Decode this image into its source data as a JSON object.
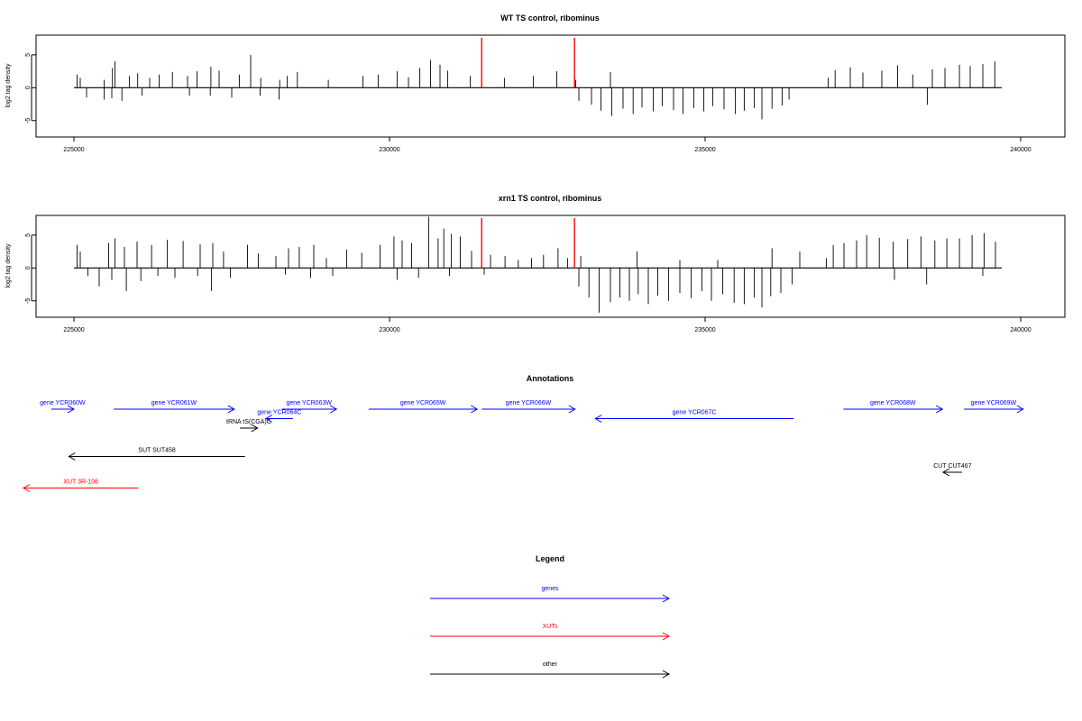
{
  "chart_data": [
    {
      "type": "bar",
      "title": "WT TS control, ribominus",
      "ylabel": "log2 tag density",
      "xlim": [
        224400,
        240700
      ],
      "ylim": [
        -7.5,
        8
      ],
      "xticks": [
        225000,
        230000,
        235000,
        240000
      ],
      "xtick_labels": [
        "225000",
        "230000",
        "235000",
        "240000"
      ],
      "yticks": [
        -5,
        0,
        5
      ],
      "ytick_labels": [
        "-5",
        "0",
        "5"
      ],
      "baseline": {
        "x_start": 225000,
        "x_end": 239700
      },
      "markers": {
        "color": "#ff0000",
        "x": [
          231460,
          232930
        ]
      },
      "series": [
        {
          "strand": "plus",
          "values": [
            [
              225050,
              2
            ],
            [
              225100,
              1.5
            ],
            [
              225480,
              1.2
            ],
            [
              225610,
              3
            ],
            [
              225650,
              4
            ],
            [
              225880,
              1.8
            ],
            [
              226010,
              2.2
            ],
            [
              226200,
              1.5
            ],
            [
              226350,
              2
            ],
            [
              226560,
              2.4
            ],
            [
              226800,
              1.8
            ],
            [
              226950,
              2.5
            ],
            [
              227170,
              3.2
            ],
            [
              227300,
              2.6
            ],
            [
              227620,
              2
            ],
            [
              227800,
              5
            ],
            [
              227960,
              1.5
            ],
            [
              228260,
              1.2
            ],
            [
              228380,
              1.8
            ],
            [
              228540,
              2.4
            ],
            [
              229030,
              1.2
            ],
            [
              229580,
              1.8
            ],
            [
              229820,
              2
            ],
            [
              230120,
              2.5
            ],
            [
              230300,
              1.6
            ],
            [
              230480,
              3
            ],
            [
              230650,
              4.2
            ],
            [
              230800,
              3.5
            ],
            [
              230920,
              2.6
            ],
            [
              231280,
              1.8
            ],
            [
              231820,
              1.5
            ],
            [
              232280,
              1.8
            ],
            [
              232650,
              2.5
            ],
            [
              232950,
              1.2
            ],
            [
              233500,
              2.4
            ],
            [
              236950,
              1.5
            ],
            [
              237060,
              2.7
            ],
            [
              237300,
              3.1
            ],
            [
              237500,
              2.3
            ],
            [
              237800,
              2.6
            ],
            [
              238050,
              3.4
            ],
            [
              238290,
              2
            ],
            [
              238600,
              2.8
            ],
            [
              238800,
              3
            ],
            [
              239030,
              3.5
            ],
            [
              239200,
              3.3
            ],
            [
              239400,
              3.6
            ],
            [
              239590,
              4
            ]
          ]
        },
        {
          "strand": "minus",
          "values": [
            [
              225200,
              -1.5
            ],
            [
              225480,
              -1.8
            ],
            [
              225600,
              -1.6
            ],
            [
              225760,
              -2
            ],
            [
              226080,
              -1.2
            ],
            [
              226830,
              -1.2
            ],
            [
              227160,
              -1.2
            ],
            [
              227500,
              -1.5
            ],
            [
              227950,
              -1.2
            ],
            [
              228250,
              -1.8
            ],
            [
              233000,
              -2
            ],
            [
              233200,
              -2.6
            ],
            [
              233350,
              -3.5
            ],
            [
              233520,
              -4.3
            ],
            [
              233700,
              -3.2
            ],
            [
              233860,
              -4
            ],
            [
              234000,
              -3
            ],
            [
              234180,
              -3.6
            ],
            [
              234320,
              -2.8
            ],
            [
              234500,
              -3.4
            ],
            [
              234650,
              -4
            ],
            [
              234820,
              -3.1
            ],
            [
              234980,
              -3.6
            ],
            [
              235120,
              -2.8
            ],
            [
              235300,
              -3.3
            ],
            [
              235480,
              -4
            ],
            [
              235620,
              -3.5
            ],
            [
              235780,
              -3.1
            ],
            [
              235900,
              -4.8
            ],
            [
              236060,
              -3.2
            ],
            [
              236220,
              -2.7
            ],
            [
              236330,
              -1.8
            ],
            [
              238520,
              -2.6
            ]
          ]
        }
      ]
    },
    {
      "type": "bar",
      "title": "xrn1 TS control, ribominus",
      "ylabel": "log2 tag density",
      "xlim": [
        224400,
        240700
      ],
      "ylim": [
        -7.5,
        8
      ],
      "xticks": [
        225000,
        230000,
        235000,
        240000
      ],
      "xtick_labels": [
        "225000",
        "230000",
        "235000",
        "240000"
      ],
      "yticks": [
        -5,
        0,
        5
      ],
      "ytick_labels": [
        "-5",
        "0",
        "5"
      ],
      "baseline": {
        "x_start": 225000,
        "x_end": 239700
      },
      "markers": {
        "color": "#ff0000",
        "x": [
          231460,
          232930
        ]
      },
      "series": [
        {
          "strand": "plus",
          "values": [
            [
              225050,
              3.5
            ],
            [
              225100,
              2.5
            ],
            [
              225550,
              3.8
            ],
            [
              225650,
              4.5
            ],
            [
              225800,
              3.2
            ],
            [
              226000,
              4
            ],
            [
              226230,
              3.5
            ],
            [
              226480,
              4.3
            ],
            [
              226730,
              4.1
            ],
            [
              227000,
              3.6
            ],
            [
              227200,
              3.8
            ],
            [
              227370,
              2.5
            ],
            [
              227750,
              3.5
            ],
            [
              227920,
              2.2
            ],
            [
              228200,
              1.8
            ],
            [
              228400,
              3
            ],
            [
              228570,
              3.2
            ],
            [
              228800,
              3.5
            ],
            [
              229000,
              1.5
            ],
            [
              229320,
              2.8
            ],
            [
              229560,
              2.3
            ],
            [
              229850,
              3.5
            ],
            [
              230070,
              4.8
            ],
            [
              230200,
              4.2
            ],
            [
              230350,
              3.8
            ],
            [
              230620,
              7.8
            ],
            [
              230770,
              4.5
            ],
            [
              230860,
              6
            ],
            [
              230980,
              5.2
            ],
            [
              231120,
              4.8
            ],
            [
              231300,
              2.6
            ],
            [
              231600,
              2
            ],
            [
              231830,
              1.8
            ],
            [
              232040,
              1.2
            ],
            [
              232250,
              1.5
            ],
            [
              232440,
              2
            ],
            [
              232670,
              3
            ],
            [
              232820,
              1.5
            ],
            [
              233030,
              1.8
            ],
            [
              233920,
              2.5
            ],
            [
              234600,
              1.2
            ],
            [
              235200,
              1.2
            ],
            [
              236060,
              3
            ],
            [
              236500,
              2.5
            ],
            [
              236920,
              1.5
            ],
            [
              237030,
              3.5
            ],
            [
              237200,
              3.8
            ],
            [
              237400,
              4.2
            ],
            [
              237560,
              5
            ],
            [
              237760,
              4.6
            ],
            [
              237980,
              4
            ],
            [
              238210,
              4.4
            ],
            [
              238420,
              4.8
            ],
            [
              238640,
              4.2
            ],
            [
              238830,
              4.5
            ],
            [
              239030,
              4.5
            ],
            [
              239230,
              5
            ],
            [
              239420,
              5.3
            ],
            [
              239600,
              4
            ]
          ]
        },
        {
          "strand": "minus",
          "values": [
            [
              225220,
              -1.2
            ],
            [
              225400,
              -2.8
            ],
            [
              225600,
              -1.8
            ],
            [
              225830,
              -3.5
            ],
            [
              226060,
              -2
            ],
            [
              226330,
              -1.2
            ],
            [
              226600,
              -1.5
            ],
            [
              226960,
              -1.2
            ],
            [
              227180,
              -3.5
            ],
            [
              227480,
              -1.5
            ],
            [
              228350,
              -1
            ],
            [
              228750,
              -1.5
            ],
            [
              229100,
              -1.2
            ],
            [
              230120,
              -1.8
            ],
            [
              230460,
              -1.5
            ],
            [
              230950,
              -1.2
            ],
            [
              231500,
              -1
            ],
            [
              233000,
              -2.8
            ],
            [
              233160,
              -4.5
            ],
            [
              233320,
              -6.8
            ],
            [
              233500,
              -5.2
            ],
            [
              233650,
              -4.5
            ],
            [
              233800,
              -5
            ],
            [
              233940,
              -4
            ],
            [
              234100,
              -5.5
            ],
            [
              234250,
              -4.2
            ],
            [
              234420,
              -5
            ],
            [
              234600,
              -3.8
            ],
            [
              234780,
              -4.6
            ],
            [
              234950,
              -3.5
            ],
            [
              235100,
              -5
            ],
            [
              235280,
              -4
            ],
            [
              235460,
              -5.3
            ],
            [
              235620,
              -5.5
            ],
            [
              235780,
              -4.5
            ],
            [
              235900,
              -6
            ],
            [
              236040,
              -4.3
            ],
            [
              236200,
              -3.8
            ],
            [
              236380,
              -2.5
            ],
            [
              238000,
              -1.8
            ],
            [
              238510,
              -2.5
            ],
            [
              239400,
              -1.2
            ]
          ]
        }
      ]
    }
  ],
  "annotations": {
    "title": "Annotations",
    "xlim": [
      224400,
      240700
    ],
    "items": [
      {
        "label": "gene YCR060W",
        "x1": 224640,
        "x2": 225000,
        "row": 0,
        "color": "#0000ff"
      },
      {
        "label": "gene YCR061W",
        "x1": 225630,
        "x2": 227540,
        "row": 0,
        "color": "#0000ff"
      },
      {
        "label": "gene YCR063W",
        "x1": 228290,
        "x2": 229160,
        "row": 0,
        "color": "#0000ff"
      },
      {
        "label": "gene YCR064C",
        "x1": 228470,
        "x2": 228040,
        "row": 0.6,
        "color": "#0000ff"
      },
      {
        "label": "tRNA tS(CGA)C",
        "x1": 227630,
        "x2": 227910,
        "row": 1.2,
        "color": "#000000"
      },
      {
        "label": "gene YCR065W",
        "x1": 229670,
        "x2": 231390,
        "row": 0,
        "color": "#0000ff"
      },
      {
        "label": "gene YCR066W",
        "x1": 231460,
        "x2": 232940,
        "row": 0,
        "color": "#0000ff"
      },
      {
        "label": "gene YCR067C",
        "x1": 236400,
        "x2": 233260,
        "row": 0.6,
        "color": "#0000ff"
      },
      {
        "label": "gene YCR068W",
        "x1": 237190,
        "x2": 238760,
        "row": 0,
        "color": "#0000ff"
      },
      {
        "label": "gene YCR069W",
        "x1": 239100,
        "x2": 240040,
        "row": 0,
        "color": "#0000ff"
      },
      {
        "label": "SUT SUT458",
        "x1": 227710,
        "x2": 224920,
        "row": 3,
        "color": "#000000"
      },
      {
        "label": "CUT CUT467",
        "x1": 239070,
        "x2": 238770,
        "row": 4,
        "color": "#000000"
      },
      {
        "label": "XUT 3R-106",
        "x1": 226020,
        "x2": 224200,
        "row": 5,
        "color": "#ff0000"
      }
    ]
  },
  "legend": {
    "title": "Legend",
    "items": [
      {
        "label": "genes",
        "color": "#0000ff"
      },
      {
        "label": "XUTs",
        "color": "#ff0000"
      },
      {
        "label": "other",
        "color": "#000000"
      }
    ]
  }
}
